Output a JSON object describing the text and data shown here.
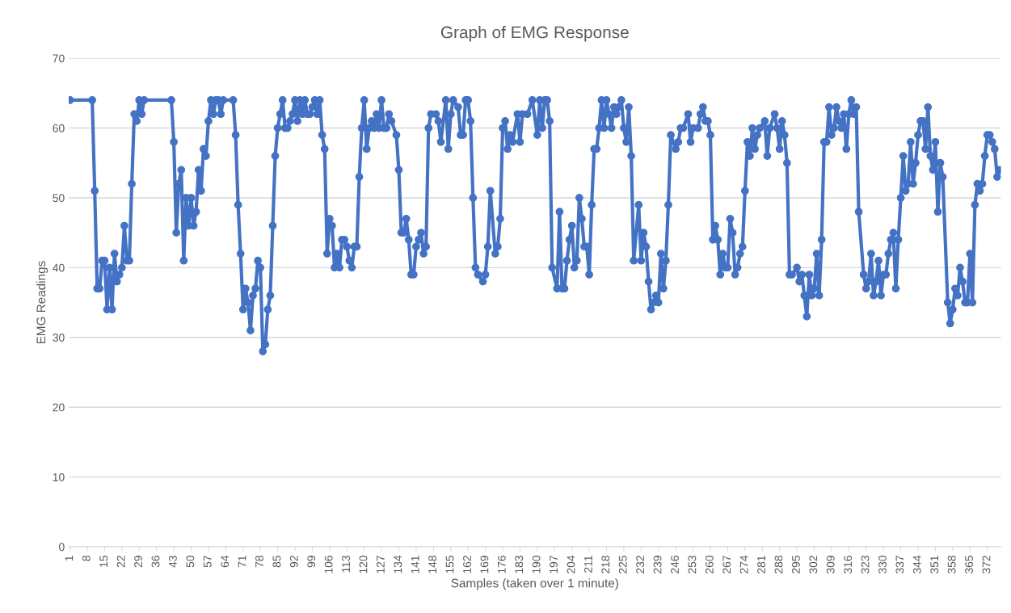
{
  "chart_data": {
    "type": "line",
    "title": "Graph of EMG Response",
    "xlabel": "Samples (taken over 1 minute)",
    "ylabel": "EMG Readings",
    "xlim": [
      0.5,
      377.5
    ],
    "xticks": [
      1,
      8,
      15,
      22,
      29,
      36,
      43,
      50,
      57,
      64,
      71,
      78,
      85,
      92,
      99,
      106,
      113,
      120,
      127,
      134,
      141,
      148,
      155,
      162,
      169,
      176,
      183,
      190,
      197,
      204,
      211,
      218,
      225,
      232,
      239,
      246,
      253,
      260,
      267,
      274,
      281,
      288,
      295,
      302,
      309,
      316,
      323,
      330,
      337,
      344,
      351,
      358,
      365,
      372
    ],
    "ylim": [
      0,
      70
    ],
    "yticks": [
      0,
      10,
      20,
      30,
      40,
      50,
      60,
      70
    ],
    "grid": "y",
    "legend": false,
    "marker": "circle",
    "line_style": "solid",
    "series": [
      {
        "color": "#4472c4",
        "x": [
          1,
          10,
          11,
          12,
          13,
          14,
          15,
          16,
          17,
          18,
          19,
          20,
          21,
          22,
          23,
          24,
          25,
          26,
          27,
          28,
          29,
          30,
          31,
          42,
          43,
          44,
          45,
          46,
          47,
          48,
          49,
          50,
          51,
          52,
          53,
          54,
          55,
          56,
          57,
          58,
          59,
          60,
          61,
          62,
          63,
          67,
          68,
          69,
          70,
          71,
          72,
          73,
          74,
          75,
          76,
          77,
          78,
          79,
          80,
          81,
          82,
          83,
          84,
          85,
          86,
          87,
          88,
          89,
          90,
          91,
          92,
          93,
          94,
          95,
          96,
          97,
          98,
          99,
          100,
          101,
          102,
          103,
          104,
          105,
          106,
          107,
          108,
          109,
          110,
          111,
          112,
          113,
          114,
          115,
          116,
          117,
          118,
          119,
          120,
          121,
          122,
          123,
          124,
          125,
          126,
          127,
          128,
          129,
          130,
          131,
          133,
          134,
          135,
          136,
          137,
          138,
          139,
          140,
          141,
          142,
          143,
          144,
          145,
          146,
          147,
          149,
          150,
          151,
          153,
          154,
          155,
          156,
          158,
          159,
          160,
          161,
          162,
          163,
          164,
          165,
          166,
          168,
          169,
          170,
          171,
          173,
          174,
          175,
          176,
          177,
          178,
          179,
          180,
          182,
          183,
          184,
          186,
          188,
          190,
          191,
          192,
          193,
          194,
          195,
          196,
          198,
          199,
          200,
          201,
          202,
          203,
          204,
          205,
          206,
          207,
          208,
          209,
          210,
          211,
          212,
          213,
          214,
          215,
          216,
          217,
          218,
          219,
          220,
          221,
          222,
          223,
          224,
          225,
          226,
          227,
          228,
          229,
          231,
          232,
          233,
          234,
          235,
          236,
          237,
          238,
          239,
          240,
          241,
          242,
          243,
          244,
          246,
          247,
          248,
          249,
          251,
          252,
          253,
          255,
          256,
          257,
          258,
          259,
          260,
          261,
          262,
          263,
          264,
          265,
          266,
          267,
          268,
          269,
          270,
          271,
          272,
          273,
          274,
          275,
          276,
          277,
          278,
          279,
          280,
          282,
          283,
          284,
          286,
          287,
          288,
          289,
          290,
          291,
          292,
          293,
          295,
          296,
          297,
          298,
          299,
          300,
          301,
          302,
          303,
          304,
          305,
          306,
          307,
          308,
          309,
          310,
          311,
          312,
          313,
          314,
          315,
          316,
          317,
          318,
          319,
          320,
          322,
          323,
          324,
          325,
          326,
          327,
          328,
          329,
          330,
          331,
          332,
          333,
          334,
          335,
          336,
          337,
          338,
          339,
          340,
          341,
          342,
          343,
          344,
          345,
          346,
          347,
          348,
          349,
          350,
          351,
          352,
          353,
          354,
          356,
          357,
          358,
          359,
          360,
          361,
          362,
          363,
          364,
          365,
          366,
          367,
          368,
          369,
          370,
          371,
          372,
          373,
          374,
          375,
          376,
          377
        ],
        "values": [
          64,
          64,
          51,
          37,
          37,
          41,
          41,
          34,
          40,
          34,
          42,
          38,
          39,
          40,
          46,
          41,
          41,
          52,
          62,
          61,
          64,
          62,
          64,
          64,
          58,
          45,
          52,
          54,
          41,
          50,
          46,
          50,
          46,
          48,
          54,
          51,
          57,
          56,
          61,
          64,
          62,
          64,
          64,
          62,
          64,
          64,
          59,
          49,
          42,
          34,
          37,
          35,
          31,
          36,
          37,
          41,
          40,
          28,
          29,
          34,
          36,
          46,
          56,
          60,
          62,
          64,
          60,
          60,
          61,
          62,
          64,
          61,
          64,
          62,
          64,
          62,
          62,
          63,
          64,
          62,
          64,
          59,
          57,
          42,
          47,
          46,
          40,
          42,
          40,
          44,
          44,
          43,
          41,
          40,
          43,
          43,
          53,
          60,
          64,
          57,
          60,
          61,
          60,
          62,
          60,
          64,
          60,
          60,
          62,
          61,
          59,
          54,
          45,
          45,
          47,
          44,
          39,
          39,
          43,
          44,
          45,
          42,
          43,
          60,
          62,
          62,
          61,
          58,
          64,
          57,
          62,
          64,
          63,
          59,
          59,
          64,
          64,
          61,
          50,
          40,
          39,
          38,
          39,
          43,
          51,
          42,
          43,
          47,
          60,
          61,
          57,
          59,
          58,
          62,
          58,
          62,
          62,
          64,
          59,
          64,
          60,
          64,
          64,
          61,
          40,
          37,
          48,
          37,
          37,
          41,
          44,
          46,
          40,
          41,
          50,
          47,
          43,
          43,
          39,
          49,
          57,
          57,
          60,
          64,
          60,
          64,
          62,
          60,
          63,
          62,
          63,
          64,
          60,
          58,
          63,
          56,
          41,
          49,
          41,
          45,
          43,
          38,
          34,
          35,
          36,
          35,
          42,
          37,
          41,
          49,
          59,
          57,
          58,
          60,
          60,
          62,
          58,
          60,
          60,
          62,
          63,
          61,
          61,
          59,
          44,
          46,
          44,
          39,
          42,
          40,
          40,
          47,
          45,
          39,
          40,
          42,
          43,
          51,
          58,
          56,
          60,
          57,
          59,
          60,
          61,
          56,
          60,
          62,
          60,
          57,
          61,
          59,
          55,
          39,
          39,
          40,
          38,
          39,
          36,
          33,
          39,
          36,
          37,
          42,
          36,
          44,
          58,
          58,
          63,
          59,
          60,
          63,
          61,
          60,
          62,
          57,
          62,
          64,
          62,
          63,
          48,
          39,
          37,
          38,
          42,
          36,
          38,
          41,
          36,
          39,
          39,
          42,
          44,
          45,
          37,
          44,
          50,
          56,
          51,
          52,
          58,
          52,
          55,
          59,
          61,
          61,
          57,
          63,
          56,
          54,
          58,
          48,
          55,
          53,
          35,
          32,
          34,
          37,
          36,
          40,
          38,
          35,
          35,
          42,
          35,
          49,
          52,
          51,
          52,
          56,
          59,
          59,
          58,
          57,
          53,
          54
        ]
      }
    ]
  }
}
